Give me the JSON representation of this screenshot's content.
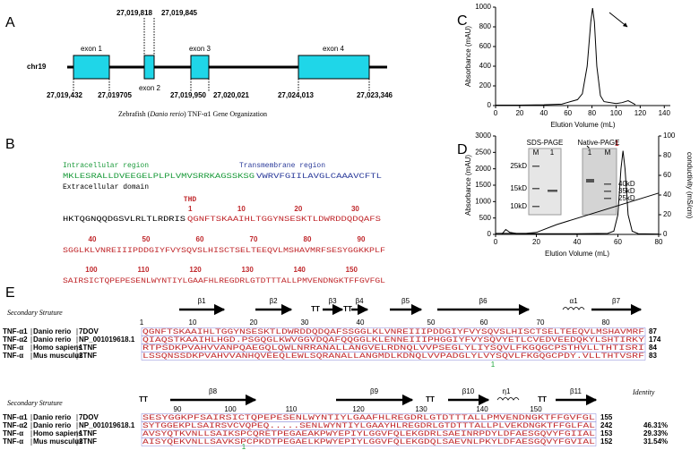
{
  "panel_labels": [
    "A",
    "B",
    "C",
    "D",
    "E"
  ],
  "gene_organization": {
    "chromosome": "chr19",
    "exons": [
      "exon 1",
      "exon 2",
      "exon 3",
      "exon 4"
    ],
    "top_coords": [
      "27,019,818",
      "27,019,845"
    ],
    "bottom_coords": [
      "27,019,432",
      "27,019705",
      "27,019,950",
      "27,020,021",
      "27,024,013",
      "27,023,346"
    ],
    "caption_pre": "Zebrafish (",
    "caption_species": "Danio rerio",
    "caption_post": ") TNF-α1 Gene Organization"
  },
  "sequence": {
    "intracellular_label": "Intracellular region",
    "transmembrane_label": "Transmembrane region",
    "extracellular_label": "Extracellular domain",
    "thd_label": "THD",
    "line1": {
      "intracellular": "MKLESRALLDVEEGELPLPLVMVSRRKAGSSKSG",
      "transmembrane": "VWRVFGIILAVGLCAAAVCFTL"
    },
    "line2": {
      "pre": "HKTQGNQQDGSVLRLTLRDRIS",
      "thd": "QGNFTSKAAIHLTGGYNSESKTLDWRDDQDQAFS",
      "numbers": [
        1,
        10,
        20,
        30
      ]
    },
    "line3": {
      "seq": "SGGLKLVNREIIIPDDGIYFVYSQVSLHISCTSELTEEQVLMSHAVMRFSESYGGKKPLF",
      "numbers": [
        40,
        50,
        60,
        70,
        80,
        90
      ]
    },
    "line4": {
      "seq": "SAIRSICTQPEPESENLWYNTIYLGAAFHLREGDRLGTDTTTALLPMVENDNGKTFFGVFGL",
      "numbers": [
        100,
        110,
        120,
        130,
        140,
        150
      ]
    }
  },
  "chart_data": [
    {
      "type": "line",
      "x_label": "Elution Volume (mL)",
      "y_label": "Absorbance (mAU)",
      "xlim": [
        0,
        145
      ],
      "xticks": [
        0,
        20,
        40,
        60,
        80,
        100,
        120,
        140
      ],
      "ylim": [
        0,
        1000
      ],
      "yticks": [
        0,
        200,
        400,
        600,
        800,
        1000
      ],
      "series": [
        {
          "color": "#000000",
          "x": [
            0,
            20,
            40,
            55,
            62,
            68,
            72,
            76,
            79,
            80.5,
            82,
            84,
            87,
            90,
            100,
            105,
            110,
            113,
            116
          ],
          "values": [
            5,
            5,
            8,
            15,
            40,
            60,
            120,
            400,
            850,
            990,
            850,
            400,
            100,
            40,
            20,
            30,
            50,
            30,
            10
          ]
        }
      ]
    },
    {
      "type": "line",
      "x_label": "Elution Volume (mL)",
      "y_label": "Absorbance (mAU)",
      "y2_label": "conductivity (mS/cm)",
      "xlim": [
        0,
        80
      ],
      "xticks": [
        0,
        20,
        40,
        60,
        80
      ],
      "ylim": [
        0,
        3000
      ],
      "yticks": [
        0,
        500,
        1000,
        1500,
        2000,
        2500,
        3000
      ],
      "y2lim": [
        0,
        100
      ],
      "y2ticks": [
        0,
        20,
        40,
        60,
        80,
        100
      ],
      "annotations": [
        "1"
      ],
      "series": [
        {
          "color": "#000000",
          "x": [
            0,
            3,
            5,
            7,
            10,
            20,
            40,
            55,
            58,
            60,
            61.5,
            62.5,
            63.5,
            65,
            67,
            70,
            80
          ],
          "values": [
            0,
            0,
            150,
            60,
            30,
            20,
            20,
            30,
            100,
            600,
            2000,
            2550,
            2000,
            600,
            100,
            20,
            10
          ]
        },
        {
          "color": "#000000",
          "axis": "y2",
          "x": [
            0,
            15,
            20,
            30,
            80
          ],
          "values": [
            1,
            1,
            2,
            10,
            42
          ]
        }
      ]
    }
  ],
  "gel_inset": {
    "sds_title": "SDS-PAGE",
    "native_title": "Native-PAGE",
    "sds_lanes": [
      "M",
      "1"
    ],
    "native_lanes": [
      "1",
      "M"
    ],
    "sds_markers": [
      "25kD",
      "15kD",
      "10kD"
    ],
    "native_markers": [
      "40kD",
      "35kD",
      "25kD"
    ]
  },
  "alignment": {
    "identity_label": "Identity",
    "blocks": [
      {
        "label": "Secondary Struture",
        "structure": [
          "β1",
          "β2",
          "TT",
          "β3",
          "TT",
          "β4",
          "β5",
          "β6",
          "α1",
          "β7"
        ],
        "ruler": [
          1,
          10,
          20,
          30,
          40,
          50,
          60,
          70,
          80
        ],
        "disulfide": "1",
        "rows": [
          {
            "name": "TNF-α1",
            "species": "Danio rerio",
            "id": "7DOV",
            "sequence": "QGNFTSKAAIHLTGGYNSESKTLDWRDDQDQAFSSGGLKLVNREIIIPDDGIYFVYSQVSLHISCTSELTEEQVLMSHAVMRF",
            "end": 87
          },
          {
            "name": "TNF-α2",
            "species": "Danio rerio",
            "id": "NP_001019618.1",
            "sequence": "QIAQSTKAAIHLHGD.PSGQGLKWVGGVDQAFQQGGLKLENNEIIIPHGGIYFVYSQVYETLCVEDVEEDQKYLSHTIRKY",
            "end": 174
          },
          {
            "name": "TNF-α",
            "species": "Homo sapiens",
            "id": "1TNF",
            "sequence": "RTPSDKPVAHVVANPQAEGQLQWLNRRANALLANGVELRDNQLVVPSEGLYLIYSQVLFKGQGCPSTHVLLTHTISRI",
            "end": 84
          },
          {
            "name": "TNF-α",
            "species": "Mus musculus",
            "id": "2TNF",
            "sequence": "LSSQNSSDKPVAHVVANHQVEEQLEWLSQRANALLANGMDLKDNQLVVPADGLYLVYSQVLFKGQGCPDY.VLLTHTVSRF",
            "end": 83
          }
        ]
      },
      {
        "label": "Secondary Struture",
        "structure": [
          "TT",
          "β8",
          "β9",
          "TT",
          "β10",
          "η1",
          "TT",
          "β11"
        ],
        "ruler": [
          90,
          100,
          110,
          120,
          130,
          140,
          150
        ],
        "disulfide": "1",
        "rows": [
          {
            "name": "TNF-α1",
            "species": "Danio rerio",
            "id": "7DOV",
            "sequence": "SESYGGKPFSAIRSICTQPEPESENLWYNTIYLGAAFHLREGDRLGTDTTTALLPMVENDNGKTFFGVFGL",
            "end": 155
          },
          {
            "name": "TNF-α2",
            "species": "Danio rerio",
            "id": "NP_001019618.1",
            "sequence": "SYTGGEKPLSAIRSVCVQPEQ.....SENLWYNTIYLGAAYHLREGDRLGTDTTTALLPLVEKDNGKTFFGLFAL",
            "end": 242,
            "identity": "46.31%"
          },
          {
            "name": "TNF-α",
            "species": "Homo sapiens",
            "id": "1TNF",
            "sequence": "AVSYQTKVNLLSAIKSPCQRETPEGAEAKPWYEPIYLGGVFQLEKGDRLSAEINRPDYLDFAESGQVYFGIIAL",
            "end": 153,
            "identity": "29.33%"
          },
          {
            "name": "TNF-α",
            "species": "Mus musculus",
            "id": "2TNF",
            "sequence": "AISYQEKVNLLSAVKSPCPKDTPEGAELKPWYEPIYLGGVFQLEKGDQLSAEVNLPKYLDFAESGQVYFGVIAL",
            "end": 152,
            "identity": "31.54%"
          }
        ]
      }
    ]
  }
}
